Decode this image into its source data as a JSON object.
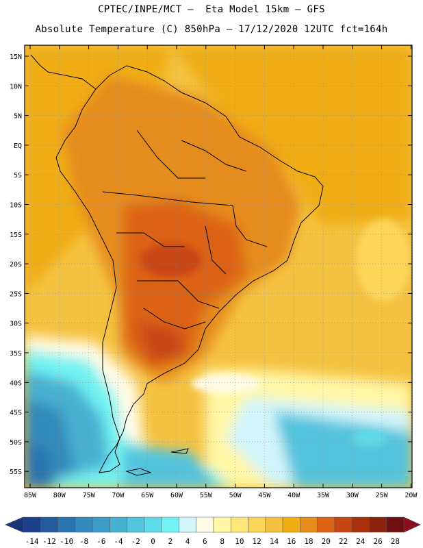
{
  "header": {
    "line1": "CPTEC/INPE/MCT –  Eta Model 15km – GFS",
    "line2": "Absolute Temperature (C) 850hPa – 17/12/2020 12UTC fct=164h"
  },
  "lat_labels": [
    "15N",
    "10N",
    "5N",
    "EQ",
    "5S",
    "10S",
    "15S",
    "20S",
    "25S",
    "30S",
    "35S",
    "40S",
    "45S",
    "50S",
    "55S"
  ],
  "lon_labels": [
    "85W",
    "80W",
    "75W",
    "70W",
    "65W",
    "60W",
    "55W",
    "50W",
    "45W",
    "40W",
    "35W",
    "30W",
    "25W",
    "20W"
  ],
  "colorbar": {
    "labels": [
      "-14",
      "-12",
      "-10",
      "-8",
      "-6",
      "-4",
      "-2",
      "0",
      "2",
      "4",
      "6",
      "8",
      "10",
      "12",
      "14",
      "16",
      "18",
      "20",
      "22",
      "24",
      "26",
      "28"
    ],
    "colors": [
      "#1c3f8c",
      "#245a9e",
      "#2c74b0",
      "#3389bc",
      "#3a9cc6",
      "#46b0d2",
      "#52c4dd",
      "#5edbe8",
      "#72f2f2",
      "#d2f5fa",
      "#fffbe6",
      "#fff7a6",
      "#ffe878",
      "#fbd55a",
      "#f5c240",
      "#f0ad14",
      "#e68c1a",
      "#dc6414",
      "#c84614",
      "#a8300a",
      "#8a2210",
      "#6e1010"
    ],
    "under_color": "#1a3478",
    "over_color": "#8a0e20"
  }
}
